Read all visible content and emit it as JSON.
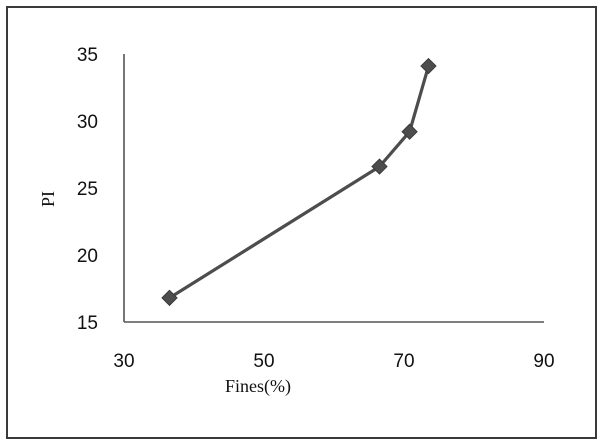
{
  "chart_data": {
    "type": "line",
    "title": "",
    "xlabel": "Fines(%)",
    "ylabel": "PI",
    "xlim": [
      30,
      90
    ],
    "ylim": [
      15,
      35
    ],
    "xticks": [
      "30",
      "50",
      "70",
      "90"
    ],
    "yticks": [
      "15",
      "20",
      "25",
      "30",
      "35"
    ],
    "grid": false,
    "legend": "none",
    "series": [
      {
        "x": [
          36.5,
          66.5,
          70.8,
          73.5
        ],
        "y": [
          16.8,
          26.6,
          29.2,
          34.1
        ],
        "color": "#4d4d4d",
        "marker": "diamond"
      }
    ]
  }
}
